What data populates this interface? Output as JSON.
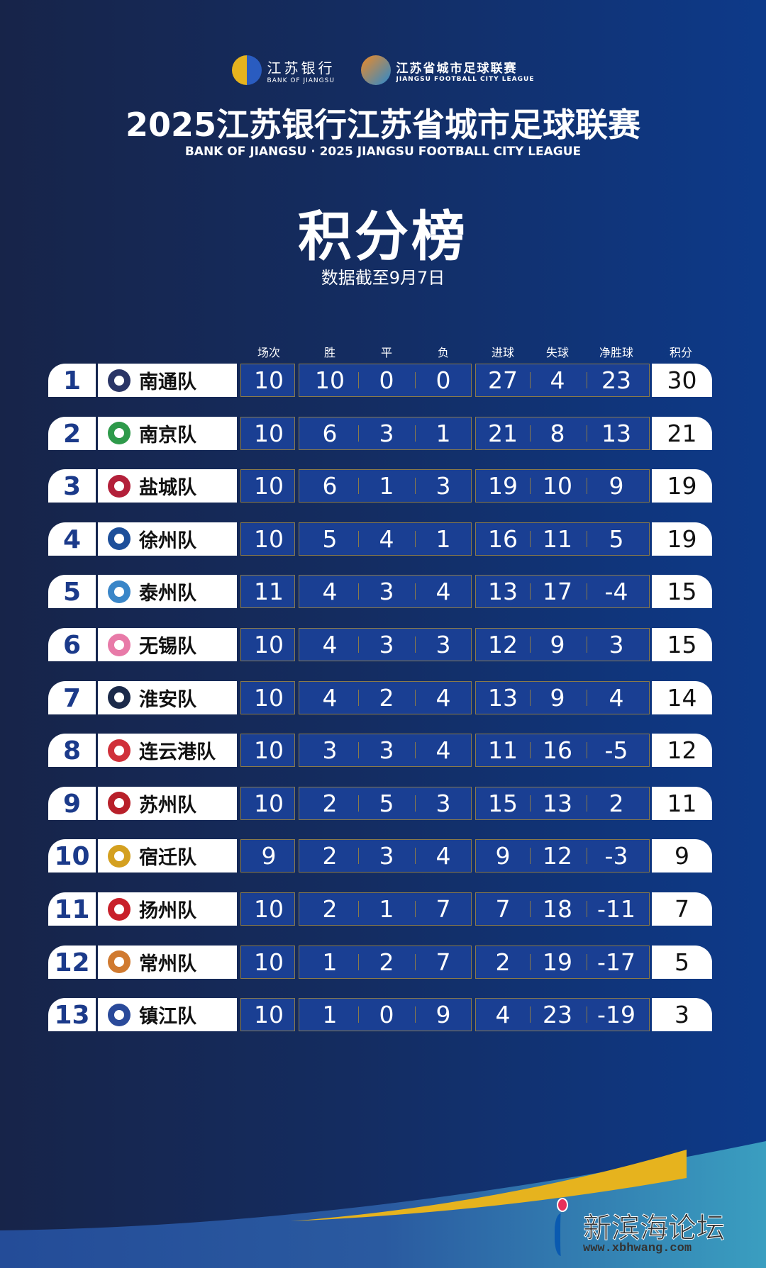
{
  "header": {
    "sponsor_logo_cn": "江苏银行",
    "sponsor_logo_en": "BANK OF JIANGSU",
    "league_logo_cn": "江苏省城市足球联赛",
    "league_logo_en": "JIANGSU FOOTBALL CITY LEAGUE",
    "title": "2025江苏银行江苏省城市足球联赛",
    "subtitle": "BANK OF JIANGSU · 2025 JIANGSU FOOTBALL CITY LEAGUE",
    "board_title": "积分榜",
    "as_of": "数据截至9月7日"
  },
  "columns": [
    "场次",
    "胜",
    "平",
    "负",
    "进球",
    "失球",
    "净胜球",
    "积分"
  ],
  "rows": [
    {
      "rank": "1",
      "team": "南通队",
      "p": "10",
      "w": "10",
      "d": "0",
      "l": "0",
      "gf": "27",
      "ga": "4",
      "gd": "23",
      "pts": "30",
      "color": "#2a3566"
    },
    {
      "rank": "2",
      "team": "南京队",
      "p": "10",
      "w": "6",
      "d": "3",
      "l": "1",
      "gf": "21",
      "ga": "8",
      "gd": "13",
      "pts": "21",
      "color": "#2e9a4a"
    },
    {
      "rank": "3",
      "team": "盐城队",
      "p": "10",
      "w": "6",
      "d": "1",
      "l": "3",
      "gf": "19",
      "ga": "10",
      "gd": "9",
      "pts": "19",
      "color": "#b3203a"
    },
    {
      "rank": "4",
      "team": "徐州队",
      "p": "10",
      "w": "5",
      "d": "4",
      "l": "1",
      "gf": "16",
      "ga": "11",
      "gd": "5",
      "pts": "19",
      "color": "#1d4f9a"
    },
    {
      "rank": "5",
      "team": "泰州队",
      "p": "11",
      "w": "4",
      "d": "3",
      "l": "4",
      "gf": "13",
      "ga": "17",
      "gd": "-4",
      "pts": "15",
      "color": "#3a86c8"
    },
    {
      "rank": "6",
      "team": "无锡队",
      "p": "10",
      "w": "4",
      "d": "3",
      "l": "3",
      "gf": "12",
      "ga": "9",
      "gd": "3",
      "pts": "15",
      "color": "#e87aa8"
    },
    {
      "rank": "7",
      "team": "淮安队",
      "p": "10",
      "w": "4",
      "d": "2",
      "l": "4",
      "gf": "13",
      "ga": "9",
      "gd": "4",
      "pts": "14",
      "color": "#1b2a4a"
    },
    {
      "rank": "8",
      "team": "连云港队",
      "p": "10",
      "w": "3",
      "d": "3",
      "l": "4",
      "gf": "11",
      "ga": "16",
      "gd": "-5",
      "pts": "12",
      "color": "#d0303a"
    },
    {
      "rank": "9",
      "team": "苏州队",
      "p": "10",
      "w": "2",
      "d": "5",
      "l": "3",
      "gf": "15",
      "ga": "13",
      "gd": "2",
      "pts": "11",
      "color": "#b8202a"
    },
    {
      "rank": "10",
      "team": "宿迁队",
      "p": "9",
      "w": "2",
      "d": "3",
      "l": "4",
      "gf": "9",
      "ga": "12",
      "gd": "-3",
      "pts": "9",
      "color": "#d4a020"
    },
    {
      "rank": "11",
      "team": "扬州队",
      "p": "10",
      "w": "2",
      "d": "1",
      "l": "7",
      "gf": "7",
      "ga": "18",
      "gd": "-11",
      "pts": "7",
      "color": "#c8202a"
    },
    {
      "rank": "12",
      "team": "常州队",
      "p": "10",
      "w": "1",
      "d": "2",
      "l": "7",
      "gf": "2",
      "ga": "19",
      "gd": "-17",
      "pts": "5",
      "color": "#d07a30"
    },
    {
      "rank": "13",
      "team": "镇江队",
      "p": "10",
      "w": "1",
      "d": "0",
      "l": "9",
      "gf": "4",
      "ga": "23",
      "gd": "-19",
      "pts": "3",
      "color": "#2a4a9a"
    }
  ],
  "watermark": {
    "name": "新滨海论坛",
    "url": "www.xbhwang.com"
  },
  "colors": {
    "accent_gold": "#e6b31e",
    "rank_blue": "#1b3a8a",
    "cell_blue": "#1a3f93"
  }
}
